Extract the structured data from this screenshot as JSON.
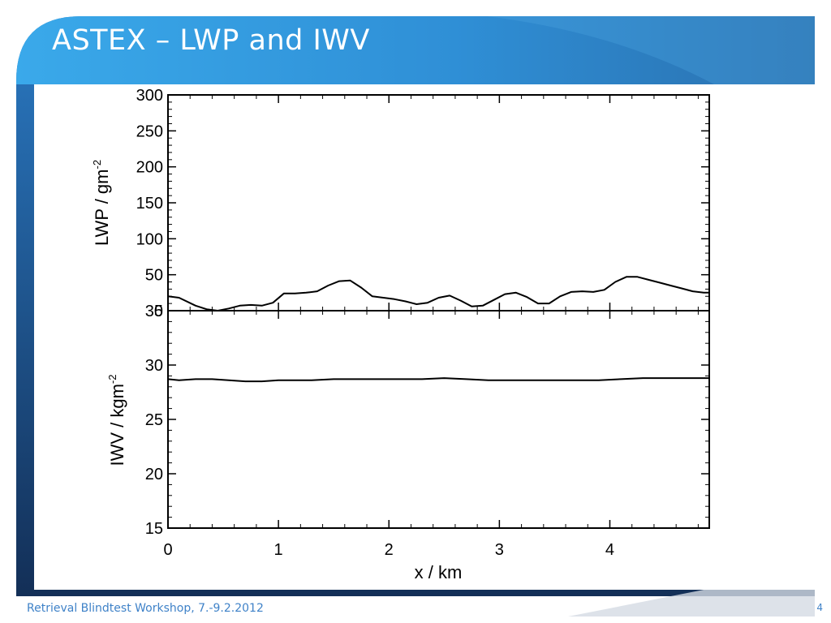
{
  "slide": {
    "title": "ASTEX – LWP and IWV",
    "footer": "Retrieval Blindtest Workshop, 7.-9.2.2012",
    "page_number": "4",
    "colors": {
      "title_bar": "#2e8fd6",
      "frame_dark": "#1c3f6e",
      "accent": "#3f82c8"
    }
  },
  "chart_data": [
    {
      "type": "line",
      "ylabel": "LWP / gm",
      "ylabel_sup": "-2",
      "xlim": [
        0,
        4.9
      ],
      "ylim": [
        0,
        300
      ],
      "yticks": [
        0,
        50,
        100,
        150,
        200,
        250,
        300
      ],
      "x": [
        0,
        0.1,
        0.25,
        0.35,
        0.45,
        0.55,
        0.65,
        0.75,
        0.85,
        0.95,
        1.05,
        1.15,
        1.25,
        1.35,
        1.45,
        1.55,
        1.65,
        1.75,
        1.85,
        1.95,
        2.05,
        2.15,
        2.25,
        2.35,
        2.45,
        2.55,
        2.65,
        2.75,
        2.85,
        2.95,
        3.05,
        3.15,
        3.25,
        3.35,
        3.45,
        3.55,
        3.65,
        3.75,
        3.85,
        3.95,
        4.05,
        4.15,
        4.25,
        4.35,
        4.45,
        4.55,
        4.65,
        4.75,
        4.85,
        4.9
      ],
      "y": [
        20,
        18,
        7,
        2,
        0,
        3,
        7,
        8,
        7,
        11,
        24,
        24,
        25,
        27,
        35,
        41,
        42,
        32,
        20,
        18,
        16,
        13,
        9,
        11,
        18,
        21,
        14,
        6,
        7,
        15,
        23,
        25,
        19,
        10,
        10,
        20,
        26,
        27,
        26,
        29,
        40,
        47,
        47,
        43,
        39,
        35,
        31,
        27,
        25,
        25
      ]
    },
    {
      "type": "line",
      "ylabel": "IWV / kgm",
      "ylabel_sup": "-2",
      "xlabel": "x / km",
      "xlim": [
        0,
        4.9
      ],
      "ylim": [
        15,
        35
      ],
      "yticks": [
        15,
        20,
        25,
        30,
        35
      ],
      "xticks": [
        0,
        1,
        2,
        3,
        4
      ],
      "x": [
        0,
        0.1,
        0.25,
        0.4,
        0.55,
        0.7,
        0.85,
        1.0,
        1.15,
        1.3,
        1.5,
        1.7,
        1.9,
        2.1,
        2.3,
        2.5,
        2.7,
        2.9,
        3.1,
        3.3,
        3.5,
        3.7,
        3.9,
        4.1,
        4.3,
        4.5,
        4.7,
        4.9
      ],
      "y": [
        28.7,
        28.6,
        28.7,
        28.7,
        28.6,
        28.5,
        28.5,
        28.6,
        28.6,
        28.6,
        28.7,
        28.7,
        28.7,
        28.7,
        28.7,
        28.8,
        28.7,
        28.6,
        28.6,
        28.6,
        28.6,
        28.6,
        28.6,
        28.7,
        28.8,
        28.8,
        28.8,
        28.8
      ]
    }
  ]
}
